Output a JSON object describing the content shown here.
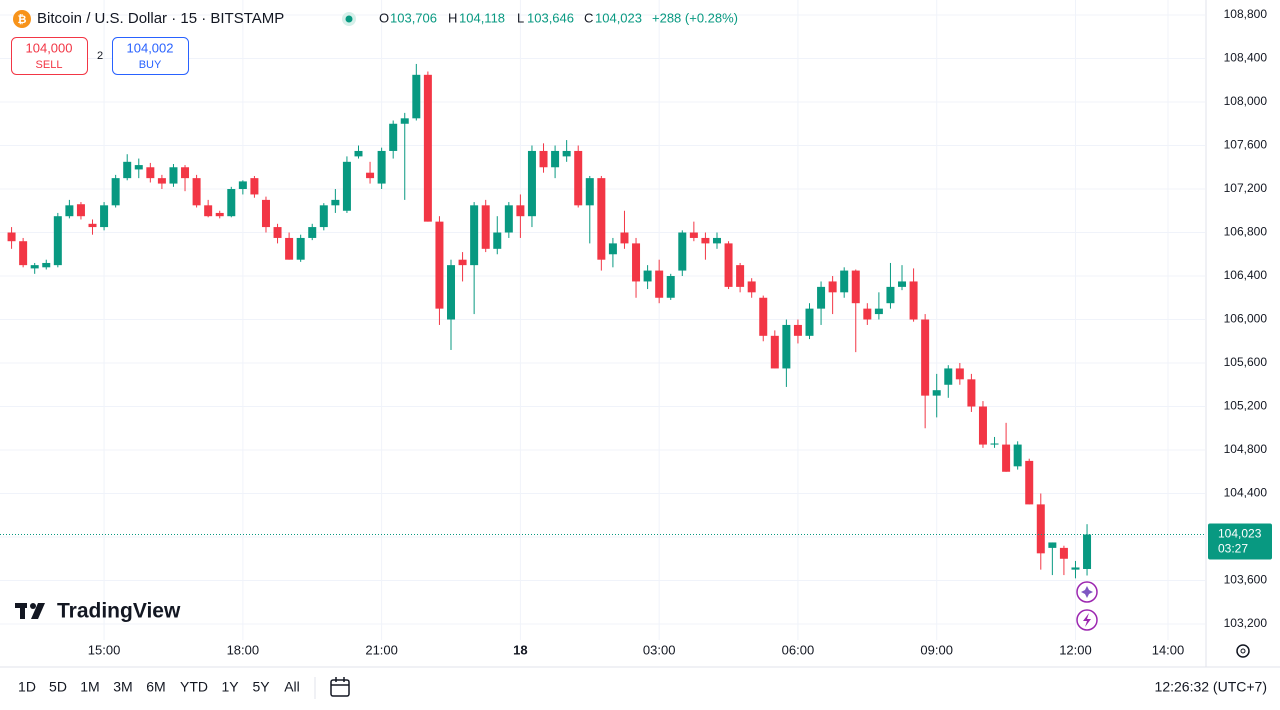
{
  "chart_data": {
    "type": "candlestick",
    "title": "Bitcoin / U.S. Dollar · 15 · BITSTAMP",
    "ohlc_header": [
      {
        "key": "O",
        "value": "103,706"
      },
      {
        "key": "H",
        "value": "104,118"
      },
      {
        "key": "L",
        "value": "103,646"
      },
      {
        "key": "C",
        "value": "104,023"
      }
    ],
    "change": "+288 (+0.28%)",
    "up_color": "#089981",
    "down_color": "#f23645",
    "grid": true,
    "open": [
      106800,
      106720,
      106470,
      106480,
      106500,
      106950,
      107060,
      106880,
      106850,
      107050,
      107300,
      107380,
      107400,
      107300,
      107250,
      107400,
      107300,
      107050,
      106980,
      106950,
      107200,
      107300,
      107100,
      106850,
      106750,
      106550,
      106750,
      106850,
      107050,
      107000,
      107500,
      107350,
      107250,
      107550,
      107800,
      107850,
      108250,
      106900,
      106000,
      106550,
      106500,
      107050,
      106650,
      106800,
      107050,
      106950,
      107550,
      107400,
      107500,
      107550,
      107050,
      107300,
      106600,
      106800,
      106700,
      106350,
      106450,
      106200,
      106450,
      106800,
      106750,
      106700,
      106700,
      106500,
      106350,
      106200,
      105850,
      105550,
      105950,
      105850,
      106100,
      106350,
      106250,
      106450,
      106100,
      106050,
      106150,
      106300,
      106350,
      106000,
      105300,
      105400,
      105550,
      105450,
      105200,
      104850,
      104850,
      104650,
      104700,
      104300,
      103900,
      103900,
      103700,
      103706
    ],
    "high": [
      106850,
      106750,
      106520,
      106550,
      106980,
      107100,
      107080,
      106920,
      107080,
      107330,
      107520,
      107480,
      107440,
      107330,
      107430,
      107420,
      107330,
      107100,
      107000,
      107220,
      107280,
      107320,
      107130,
      106880,
      106800,
      106780,
      106880,
      107070,
      107200,
      107500,
      107600,
      107450,
      107580,
      107830,
      107900,
      108350,
      108280,
      106950,
      106550,
      106620,
      107080,
      107100,
      106950,
      107080,
      107150,
      107600,
      107620,
      107600,
      107650,
      107600,
      107320,
      107320,
      106750,
      107000,
      106750,
      106500,
      106550,
      106420,
      106820,
      106900,
      106800,
      106800,
      106720,
      106520,
      106380,
      106220,
      105900,
      106000,
      106000,
      106150,
      106350,
      106400,
      106480,
      106460,
      106150,
      106250,
      106520,
      106500,
      106470,
      106050,
      105500,
      105580,
      105600,
      105500,
      105250,
      104920,
      105050,
      104880,
      104720,
      104400,
      103950,
      103920,
      103780,
      104118
    ],
    "low": [
      106650,
      106480,
      106420,
      106460,
      106480,
      106930,
      106920,
      106780,
      106820,
      107030,
      107280,
      107300,
      107260,
      107200,
      107220,
      107180,
      107030,
      106940,
      106930,
      106940,
      107150,
      107120,
      106800,
      106700,
      106550,
      106530,
      106730,
      106820,
      106980,
      106980,
      107480,
      107250,
      107200,
      107480,
      107100,
      107830,
      106900,
      105950,
      105720,
      106350,
      106050,
      106620,
      106600,
      106750,
      106750,
      106850,
      107350,
      107300,
      107450,
      107030,
      106700,
      106450,
      106480,
      106650,
      106200,
      106280,
      106150,
      106180,
      106400,
      106720,
      106550,
      106650,
      106280,
      106250,
      106200,
      105800,
      105550,
      105380,
      105780,
      105820,
      105950,
      106050,
      106200,
      105700,
      105950,
      106000,
      106100,
      106270,
      105980,
      105000,
      105100,
      105280,
      105400,
      105150,
      104820,
      104820,
      104600,
      104620,
      104300,
      103700,
      103650,
      103650,
      103620,
      103646
    ],
    "close": [
      106720,
      106500,
      106500,
      106520,
      106950,
      107050,
      106950,
      106850,
      107050,
      107300,
      107450,
      107420,
      107300,
      107250,
      107400,
      107300,
      107050,
      106950,
      106950,
      107200,
      107270,
      107150,
      106850,
      106750,
      106550,
      106750,
      106850,
      107050,
      107100,
      107450,
      107550,
      107300,
      107550,
      107800,
      107850,
      108250,
      106900,
      106100,
      106500,
      106500,
      107050,
      106650,
      106800,
      107050,
      106950,
      107550,
      107400,
      107550,
      107550,
      107050,
      107300,
      106550,
      106700,
      106700,
      106350,
      106450,
      106200,
      106400,
      106800,
      106750,
      106700,
      106750,
      106300,
      106300,
      106250,
      105850,
      105550,
      105950,
      105850,
      106100,
      106300,
      106250,
      106450,
      106150,
      106000,
      106100,
      106300,
      106350,
      106000,
      105300,
      105350,
      105550,
      105450,
      105200,
      104850,
      104860,
      104600,
      104850,
      104300,
      103850,
      103950,
      103800,
      103720,
      104023
    ],
    "ylim": [
      103053,
      108938
    ],
    "yticks": [
      {
        "value": 103200,
        "label": "103,200"
      },
      {
        "value": 103600,
        "label": "103,600"
      },
      {
        "value": 104000,
        "label": "104,000"
      },
      {
        "value": 104400,
        "label": "104,400"
      },
      {
        "value": 104800,
        "label": "104,800"
      },
      {
        "value": 105200,
        "label": "105,200"
      },
      {
        "value": 105600,
        "label": "105,600"
      },
      {
        "value": 106000,
        "label": "106,000"
      },
      {
        "value": 106400,
        "label": "106,400"
      },
      {
        "value": 106800,
        "label": "106,800"
      },
      {
        "value": 107200,
        "label": "107,200"
      },
      {
        "value": 107600,
        "label": "107,600"
      },
      {
        "value": 108000,
        "label": "108,000"
      },
      {
        "value": 108400,
        "label": "108,400"
      },
      {
        "value": 108800,
        "label": "108,800"
      }
    ],
    "xlim": [
      -1,
      103.2
    ],
    "xticks": [
      {
        "value": 8,
        "label": "15:00"
      },
      {
        "value": 20,
        "label": "18:00"
      },
      {
        "value": 32,
        "label": "21:00"
      },
      {
        "value": 44,
        "label": "18"
      },
      {
        "value": 56,
        "label": "03:00"
      },
      {
        "value": 68,
        "label": "06:00"
      },
      {
        "value": 80,
        "label": "09:00"
      },
      {
        "value": 92,
        "label": "12:00"
      },
      {
        "value": 100,
        "label": "14:00"
      }
    ],
    "last_price": {
      "value": 104023,
      "label": "104,023"
    },
    "countdown": "03:27"
  },
  "trade": {
    "sell_price": "104,000",
    "sell": "SELL",
    "spread": "2",
    "buy_price": "104,002",
    "buy": "BUY"
  },
  "logo": "TradingView",
  "toolbar": {
    "ranges": [
      "1D",
      "5D",
      "1M",
      "3M",
      "6M",
      "YTD",
      "1Y",
      "5Y",
      "All"
    ],
    "clock": "12:26:32 (UTC+7)"
  }
}
